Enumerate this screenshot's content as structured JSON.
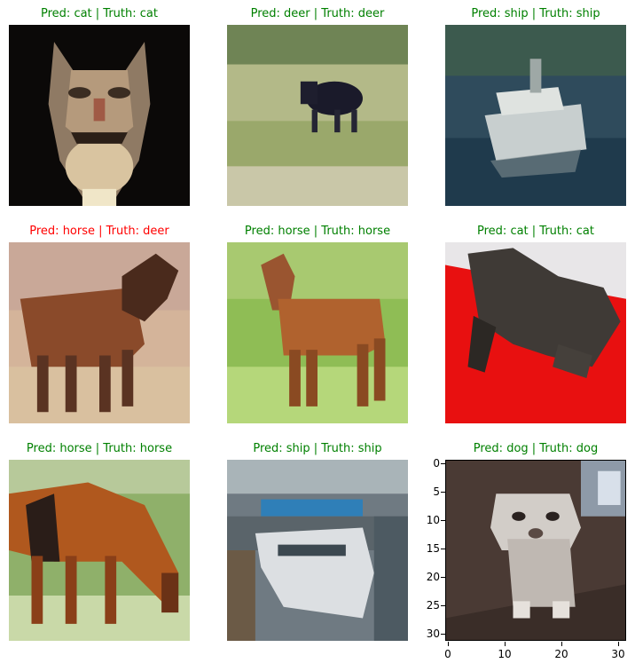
{
  "colors": {
    "correct": "#008000",
    "incorrect": "#ff0000"
  },
  "panels": [
    {
      "title": "Pred: cat | Truth: cat",
      "status": "correct",
      "subject": "cat"
    },
    {
      "title": "Pred: deer | Truth: deer",
      "status": "correct",
      "subject": "deer"
    },
    {
      "title": "Pred: ship | Truth: ship",
      "status": "correct",
      "subject": "ship"
    },
    {
      "title": "Pred: horse | Truth: deer",
      "status": "incorrect",
      "subject": "deer"
    },
    {
      "title": "Pred: horse | Truth: horse",
      "status": "correct",
      "subject": "horse"
    },
    {
      "title": "Pred: cat | Truth: cat",
      "status": "correct",
      "subject": "cat"
    },
    {
      "title": "Pred: horse | Truth: horse",
      "status": "correct",
      "subject": "horse"
    },
    {
      "title": "Pred: ship | Truth: ship",
      "status": "correct",
      "subject": "ship"
    },
    {
      "title": "Pred: dog | Truth: dog",
      "status": "correct",
      "subject": "dog"
    }
  ],
  "last_axes": {
    "yticks": [
      "0",
      "5",
      "10",
      "15",
      "20",
      "25",
      "30"
    ],
    "xticks": [
      "0",
      "10",
      "20",
      "30"
    ]
  }
}
